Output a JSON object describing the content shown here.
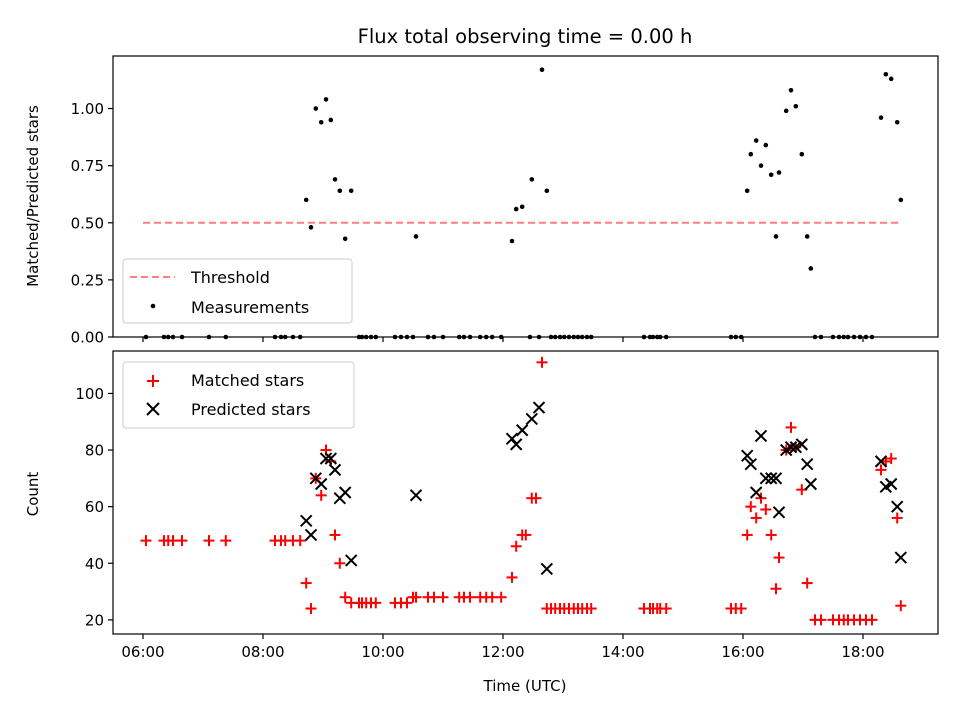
{
  "chart_data": [
    {
      "type": "scatter",
      "title": "Flux total observing time = 0.00 h",
      "xlabel": "",
      "ylabel": "Matched/Predicted stars",
      "xlim": [
        5.5,
        19.25
      ],
      "ylim": [
        0,
        1.23
      ],
      "yticks": [
        0,
        0.25,
        0.5,
        0.75,
        1.0
      ],
      "ytick_labels": [
        "0.00",
        "0.25",
        "0.50",
        "0.75",
        "1.00"
      ],
      "xticks": [
        6,
        8,
        10,
        12,
        14,
        16,
        18
      ],
      "threshold": {
        "name": "Threshold",
        "y": 0.5,
        "x": [
          6.0,
          18.65
        ],
        "color": "#ff7f7f"
      },
      "series": [
        {
          "name": "Measurements",
          "color": "#000000",
          "points": [
            [
              6.05,
              0
            ],
            [
              6.35,
              0
            ],
            [
              6.42,
              0
            ],
            [
              6.5,
              0
            ],
            [
              6.65,
              0
            ],
            [
              7.1,
              0
            ],
            [
              7.38,
              0
            ],
            [
              8.2,
              0
            ],
            [
              8.3,
              0
            ],
            [
              8.37,
              0
            ],
            [
              8.5,
              0
            ],
            [
              8.62,
              0
            ],
            [
              8.72,
              0.6
            ],
            [
              8.8,
              0.48
            ],
            [
              8.88,
              1.0
            ],
            [
              8.97,
              0.94
            ],
            [
              9.05,
              1.04
            ],
            [
              9.13,
              0.95
            ],
            [
              9.2,
              0.69
            ],
            [
              9.28,
              0.64
            ],
            [
              9.37,
              0.43
            ],
            [
              9.47,
              0.64
            ],
            [
              9.6,
              0
            ],
            [
              9.65,
              0
            ],
            [
              9.72,
              0
            ],
            [
              9.8,
              0
            ],
            [
              9.88,
              0
            ],
            [
              10.2,
              0
            ],
            [
              10.3,
              0
            ],
            [
              10.4,
              0
            ],
            [
              10.5,
              0
            ],
            [
              10.55,
              0.44
            ],
            [
              10.75,
              0
            ],
            [
              10.85,
              0
            ],
            [
              11.0,
              0
            ],
            [
              11.27,
              0
            ],
            [
              11.35,
              0
            ],
            [
              11.45,
              0
            ],
            [
              11.62,
              0
            ],
            [
              11.72,
              0
            ],
            [
              11.82,
              0
            ],
            [
              11.97,
              0
            ],
            [
              12.15,
              0.42
            ],
            [
              12.22,
              0.56
            ],
            [
              12.32,
              0.57
            ],
            [
              12.45,
              0
            ],
            [
              12.48,
              0.69
            ],
            [
              12.6,
              0
            ],
            [
              12.65,
              1.17
            ],
            [
              12.73,
              0.64
            ],
            [
              12.8,
              0
            ],
            [
              12.87,
              0
            ],
            [
              12.95,
              0
            ],
            [
              13.02,
              0
            ],
            [
              13.1,
              0
            ],
            [
              13.18,
              0
            ],
            [
              13.25,
              0
            ],
            [
              13.32,
              0
            ],
            [
              13.4,
              0
            ],
            [
              13.47,
              0
            ],
            [
              14.35,
              0
            ],
            [
              14.45,
              0
            ],
            [
              14.5,
              0
            ],
            [
              14.57,
              0
            ],
            [
              14.62,
              0
            ],
            [
              14.72,
              0
            ],
            [
              15.8,
              0
            ],
            [
              15.88,
              0
            ],
            [
              15.97,
              0
            ],
            [
              16.07,
              0.64
            ],
            [
              16.13,
              0.8
            ],
            [
              16.22,
              0.86
            ],
            [
              16.3,
              0.75
            ],
            [
              16.38,
              0.84
            ],
            [
              16.47,
              0.71
            ],
            [
              16.55,
              0.44
            ],
            [
              16.6,
              0.72
            ],
            [
              16.72,
              0.99
            ],
            [
              16.8,
              1.08
            ],
            [
              16.88,
              1.01
            ],
            [
              16.98,
              0.8
            ],
            [
              17.07,
              0.44
            ],
            [
              17.13,
              0.3
            ],
            [
              17.2,
              0
            ],
            [
              17.3,
              0
            ],
            [
              17.5,
              0
            ],
            [
              17.6,
              0
            ],
            [
              17.68,
              0
            ],
            [
              17.75,
              0
            ],
            [
              17.85,
              0
            ],
            [
              17.95,
              0
            ],
            [
              18.05,
              0
            ],
            [
              18.15,
              0
            ],
            [
              18.3,
              0.96
            ],
            [
              18.38,
              1.15
            ],
            [
              18.47,
              1.13
            ],
            [
              18.57,
              0.94
            ],
            [
              18.63,
              0.6
            ]
          ]
        }
      ],
      "legend": {
        "placement": "lower-left",
        "entries": [
          "Threshold",
          "Measurements"
        ]
      },
      "grid": false
    },
    {
      "type": "scatter",
      "title": "",
      "xlabel": "Time (UTC)",
      "ylabel": "Count",
      "xlim": [
        5.5,
        19.25
      ],
      "ylim": [
        15,
        115
      ],
      "yticks": [
        20,
        40,
        60,
        80,
        100
      ],
      "ytick_labels": [
        "20",
        "40",
        "60",
        "80",
        "100"
      ],
      "xticks": [
        6,
        8,
        10,
        12,
        14,
        16,
        18
      ],
      "xtick_labels": [
        "06:00",
        "08:00",
        "10:00",
        "12:00",
        "14:00",
        "16:00",
        "18:00"
      ],
      "series": [
        {
          "name": "Matched stars",
          "marker": "plus",
          "color": "#ff0000",
          "points": [
            [
              6.05,
              48
            ],
            [
              6.35,
              48
            ],
            [
              6.42,
              48
            ],
            [
              6.5,
              48
            ],
            [
              6.65,
              48
            ],
            [
              7.1,
              48
            ],
            [
              7.38,
              48
            ],
            [
              8.2,
              48
            ],
            [
              8.3,
              48
            ],
            [
              8.37,
              48
            ],
            [
              8.5,
              48
            ],
            [
              8.62,
              48
            ],
            [
              8.72,
              33
            ],
            [
              8.8,
              24
            ],
            [
              8.88,
              70
            ],
            [
              8.97,
              64
            ],
            [
              9.05,
              80
            ],
            [
              9.13,
              76
            ],
            [
              9.2,
              50
            ],
            [
              9.28,
              40
            ],
            [
              9.37,
              28
            ],
            [
              9.47,
              26
            ],
            [
              9.6,
              26
            ],
            [
              9.65,
              26
            ],
            [
              9.72,
              26
            ],
            [
              9.8,
              26
            ],
            [
              9.88,
              26
            ],
            [
              10.2,
              26
            ],
            [
              10.3,
              26
            ],
            [
              10.4,
              26
            ],
            [
              10.5,
              28
            ],
            [
              10.55,
              28
            ],
            [
              10.75,
              28
            ],
            [
              10.85,
              28
            ],
            [
              11.0,
              28
            ],
            [
              11.27,
              28
            ],
            [
              11.35,
              28
            ],
            [
              11.45,
              28
            ],
            [
              11.62,
              28
            ],
            [
              11.72,
              28
            ],
            [
              11.82,
              28
            ],
            [
              11.97,
              28
            ],
            [
              12.15,
              35
            ],
            [
              12.22,
              46
            ],
            [
              12.32,
              50
            ],
            [
              12.38,
              50
            ],
            [
              12.48,
              63
            ],
            [
              12.55,
              63
            ],
            [
              12.65,
              111
            ],
            [
              12.73,
              24
            ],
            [
              12.8,
              24
            ],
            [
              12.87,
              24
            ],
            [
              12.95,
              24
            ],
            [
              13.02,
              24
            ],
            [
              13.1,
              24
            ],
            [
              13.18,
              24
            ],
            [
              13.25,
              24
            ],
            [
              13.32,
              24
            ],
            [
              13.4,
              24
            ],
            [
              13.47,
              24
            ],
            [
              14.35,
              24
            ],
            [
              14.45,
              24
            ],
            [
              14.5,
              24
            ],
            [
              14.57,
              24
            ],
            [
              14.62,
              24
            ],
            [
              14.72,
              24
            ],
            [
              15.8,
              24
            ],
            [
              15.88,
              24
            ],
            [
              15.97,
              24
            ],
            [
              16.07,
              50
            ],
            [
              16.13,
              60
            ],
            [
              16.22,
              56
            ],
            [
              16.3,
              63
            ],
            [
              16.38,
              59
            ],
            [
              16.47,
              50
            ],
            [
              16.55,
              31
            ],
            [
              16.6,
              42
            ],
            [
              16.72,
              80
            ],
            [
              16.8,
              88
            ],
            [
              16.88,
              81
            ],
            [
              16.98,
              66
            ],
            [
              17.07,
              33
            ],
            [
              17.2,
              20
            ],
            [
              17.3,
              20
            ],
            [
              17.5,
              20
            ],
            [
              17.6,
              20
            ],
            [
              17.68,
              20
            ],
            [
              17.75,
              20
            ],
            [
              17.85,
              20
            ],
            [
              17.95,
              20
            ],
            [
              18.05,
              20
            ],
            [
              18.15,
              20
            ],
            [
              18.3,
              73
            ],
            [
              18.38,
              76
            ],
            [
              18.47,
              77
            ],
            [
              18.57,
              56
            ],
            [
              18.63,
              25
            ]
          ]
        },
        {
          "name": "Predicted stars",
          "marker": "x",
          "color": "#000000",
          "points": [
            [
              8.72,
              55
            ],
            [
              8.8,
              50
            ],
            [
              8.88,
              70
            ],
            [
              8.97,
              68
            ],
            [
              9.05,
              77
            ],
            [
              9.13,
              77
            ],
            [
              9.2,
              73
            ],
            [
              9.28,
              63
            ],
            [
              9.37,
              65
            ],
            [
              9.47,
              41
            ],
            [
              10.55,
              64
            ],
            [
              12.15,
              84
            ],
            [
              12.22,
              82
            ],
            [
              12.32,
              87
            ],
            [
              12.48,
              91
            ],
            [
              12.6,
              95
            ],
            [
              12.73,
              38
            ],
            [
              16.07,
              78
            ],
            [
              16.13,
              75
            ],
            [
              16.22,
              65
            ],
            [
              16.3,
              85
            ],
            [
              16.38,
              70
            ],
            [
              16.47,
              70
            ],
            [
              16.55,
              70
            ],
            [
              16.6,
              58
            ],
            [
              16.72,
              80
            ],
            [
              16.8,
              81
            ],
            [
              16.88,
              81
            ],
            [
              16.98,
              82
            ],
            [
              17.07,
              75
            ],
            [
              17.13,
              68
            ],
            [
              18.3,
              76
            ],
            [
              18.38,
              67
            ],
            [
              18.47,
              68
            ],
            [
              18.57,
              60
            ],
            [
              18.63,
              42
            ]
          ]
        }
      ],
      "legend": {
        "placement": "upper-left",
        "entries": [
          "Matched stars",
          "Predicted stars"
        ]
      },
      "grid": false
    }
  ]
}
